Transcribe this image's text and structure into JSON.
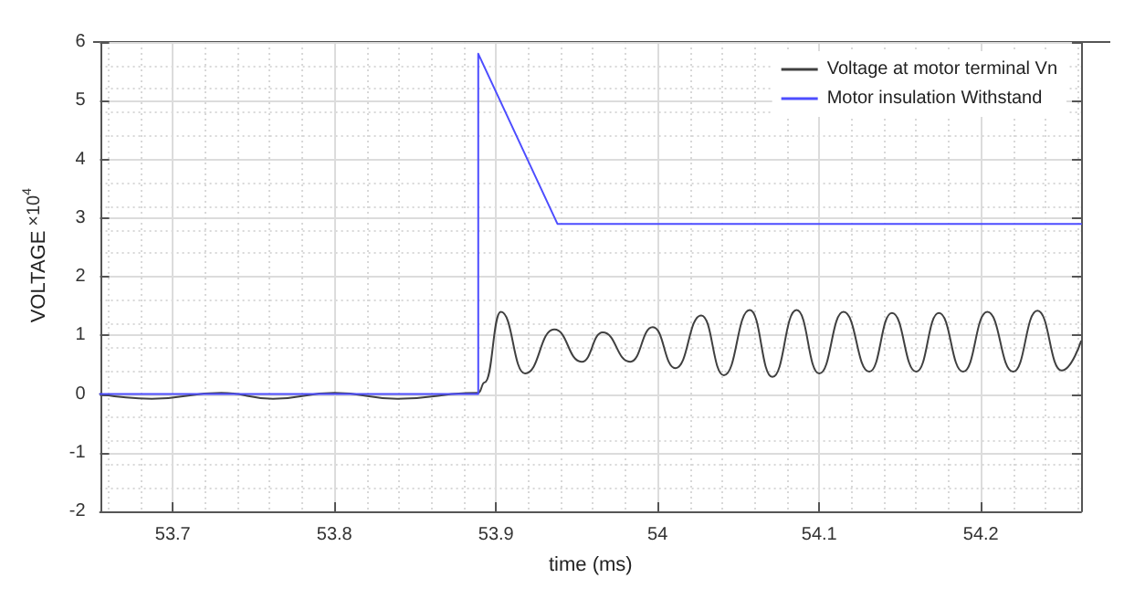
{
  "chart_data": {
    "type": "line",
    "xlabel": "time (ms)",
    "ylabel": "VOLTAGE",
    "annotations": [
      "×10$^{4}$"
    ],
    "xlim": [
      53.655,
      54.262
    ],
    "ylim": [
      -2,
      6
    ],
    "xticks": [
      53.7,
      53.8,
      53.9,
      54,
      54.1,
      54.2
    ],
    "yticks": [
      -2,
      -1,
      0,
      1,
      2,
      3,
      4,
      5,
      6
    ],
    "grid": true,
    "legend": "top right",
    "marker": "none",
    "line_style": "solid",
    "series": [
      {
        "name": "Voltage at motor terminal Vn",
        "color": "#404040",
        "x": [
          53.655,
          53.687,
          53.73,
          53.762,
          53.8,
          53.839,
          53.889,
          53.893,
          53.903,
          53.918,
          53.936,
          53.953,
          53.966,
          53.983,
          53.997,
          54.011,
          54.027,
          54.041,
          54.057,
          54.071,
          54.086,
          54.1,
          54.115,
          54.131,
          54.145,
          54.16,
          54.174,
          54.189,
          54.204,
          54.22,
          54.235,
          54.25,
          54.262
        ],
        "values": [
          0,
          -0.08,
          0.02,
          -0.08,
          0.02,
          -0.08,
          0.02,
          0.2,
          1.4,
          0.35,
          1.1,
          0.55,
          1.05,
          0.55,
          1.14,
          0.44,
          1.34,
          0.32,
          1.43,
          0.29,
          1.43,
          0.35,
          1.4,
          0.38,
          1.38,
          0.38,
          1.38,
          0.38,
          1.4,
          0.38,
          1.42,
          0.4,
          0.9
        ]
      },
      {
        "name": "Motor insulation Withstand",
        "color": "#4d4dff",
        "x": [
          53.655,
          53.889,
          53.889,
          53.938,
          54.262
        ],
        "values": [
          0,
          0,
          5.8,
          2.9,
          2.9
        ]
      }
    ]
  }
}
